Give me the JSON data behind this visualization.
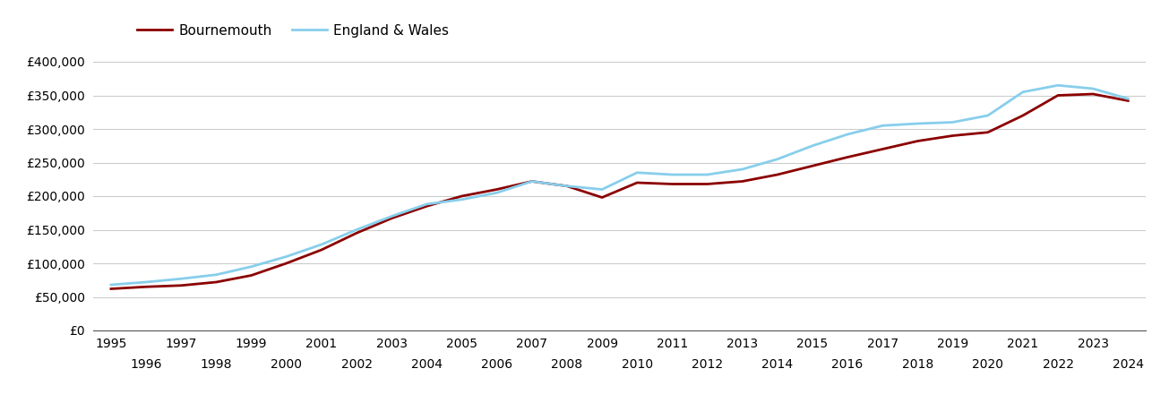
{
  "bournemouth": {
    "years": [
      1995,
      1996,
      1997,
      1998,
      1999,
      2000,
      2001,
      2002,
      2003,
      2004,
      2005,
      2006,
      2007,
      2008,
      2009,
      2010,
      2011,
      2012,
      2013,
      2014,
      2015,
      2016,
      2017,
      2018,
      2019,
      2020,
      2021,
      2022,
      2023,
      2024
    ],
    "values": [
      62000,
      65000,
      67000,
      72000,
      82000,
      100000,
      120000,
      145000,
      167000,
      185000,
      200000,
      210000,
      222000,
      215000,
      198000,
      220000,
      218000,
      218000,
      222000,
      232000,
      245000,
      258000,
      270000,
      282000,
      290000,
      295000,
      320000,
      350000,
      352000,
      342000
    ]
  },
  "england_wales": {
    "years": [
      1995,
      1996,
      1997,
      1998,
      1999,
      2000,
      2001,
      2002,
      2003,
      2004,
      2005,
      2006,
      2007,
      2008,
      2009,
      2010,
      2011,
      2012,
      2013,
      2014,
      2015,
      2016,
      2017,
      2018,
      2019,
      2020,
      2021,
      2022,
      2023,
      2024
    ],
    "values": [
      68000,
      72000,
      77000,
      83000,
      95000,
      110000,
      128000,
      150000,
      170000,
      188000,
      195000,
      205000,
      222000,
      215000,
      210000,
      235000,
      232000,
      232000,
      240000,
      255000,
      275000,
      292000,
      305000,
      308000,
      310000,
      320000,
      355000,
      365000,
      360000,
      345000
    ]
  },
  "bournemouth_color": "#8B0000",
  "england_wales_color": "#87CEEB",
  "bournemouth_label": "Bournemouth",
  "england_wales_label": "England & Wales",
  "ylim": [
    0,
    420000
  ],
  "yticks": [
    0,
    50000,
    100000,
    150000,
    200000,
    250000,
    300000,
    350000,
    400000
  ],
  "background_color": "#ffffff",
  "grid_color": "#cccccc"
}
